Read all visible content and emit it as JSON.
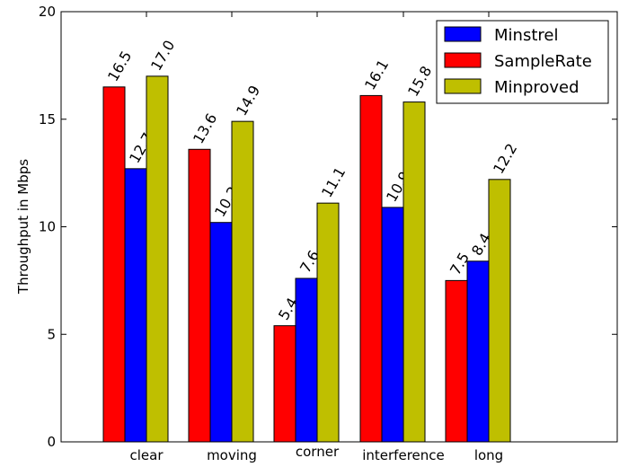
{
  "chart_data": {
    "type": "bar",
    "title": "",
    "xlabel": "",
    "ylabel": "Throughput in Mbps",
    "ylim": [
      0,
      20
    ],
    "yticks": [
      0,
      5,
      10,
      15,
      20
    ],
    "categories": [
      "clear",
      "moving",
      "corner",
      "interference",
      "long"
    ],
    "series": [
      {
        "name": "SampleRate",
        "color": "#ff0000",
        "values": [
          16.5,
          13.6,
          5.4,
          16.1,
          7.5
        ]
      },
      {
        "name": "Minstrel",
        "color": "#0000ff",
        "values": [
          12.7,
          10.2,
          7.6,
          10.9,
          8.4
        ]
      },
      {
        "name": "Minproved",
        "color": "#bfbf00",
        "values": [
          17.0,
          14.9,
          11.1,
          15.8,
          12.2
        ]
      }
    ],
    "legend": {
      "position": "top-right",
      "order": [
        "Minstrel",
        "SampleRate",
        "Minproved"
      ]
    },
    "grid": false
  }
}
